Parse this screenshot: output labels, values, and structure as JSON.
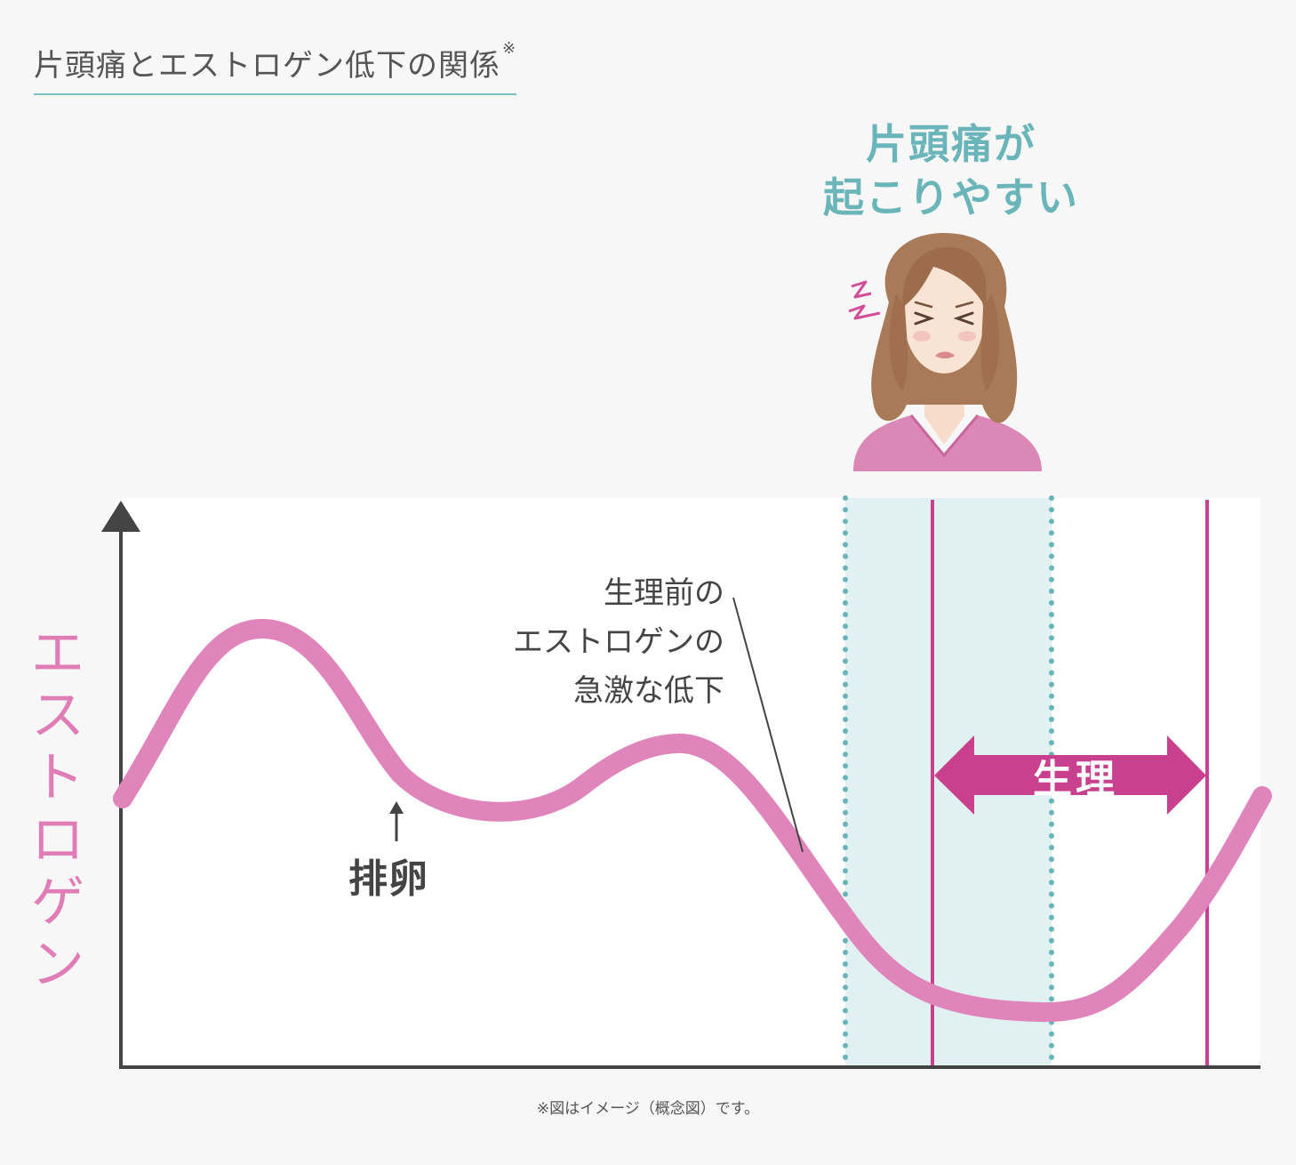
{
  "title": "片頭痛とエストロゲン低下の関係",
  "title_mark": "※",
  "callout": {
    "line1": "片頭痛が",
    "line2": "起こりやすい"
  },
  "yaxis_label": [
    "エ",
    "ス",
    "ト",
    "ロ",
    "ゲ",
    "ン"
  ],
  "note": {
    "line1": "生理前の",
    "line2": "エストロゲンの",
    "line3": "急激な低下"
  },
  "ovulation_label": "排卵",
  "period_label": "生理",
  "footnote": "※図はイメージ（概念図）です。",
  "colors": {
    "curve": "#e085bb",
    "teal": "#6ab5b9",
    "magenta": "#c9408f",
    "axis": "#444444",
    "band": "#e1f0f1"
  },
  "icons": [
    "headache-woman-illustration",
    "pain-spark-icon",
    "up-arrow-icon",
    "double-arrow-icon"
  ]
}
